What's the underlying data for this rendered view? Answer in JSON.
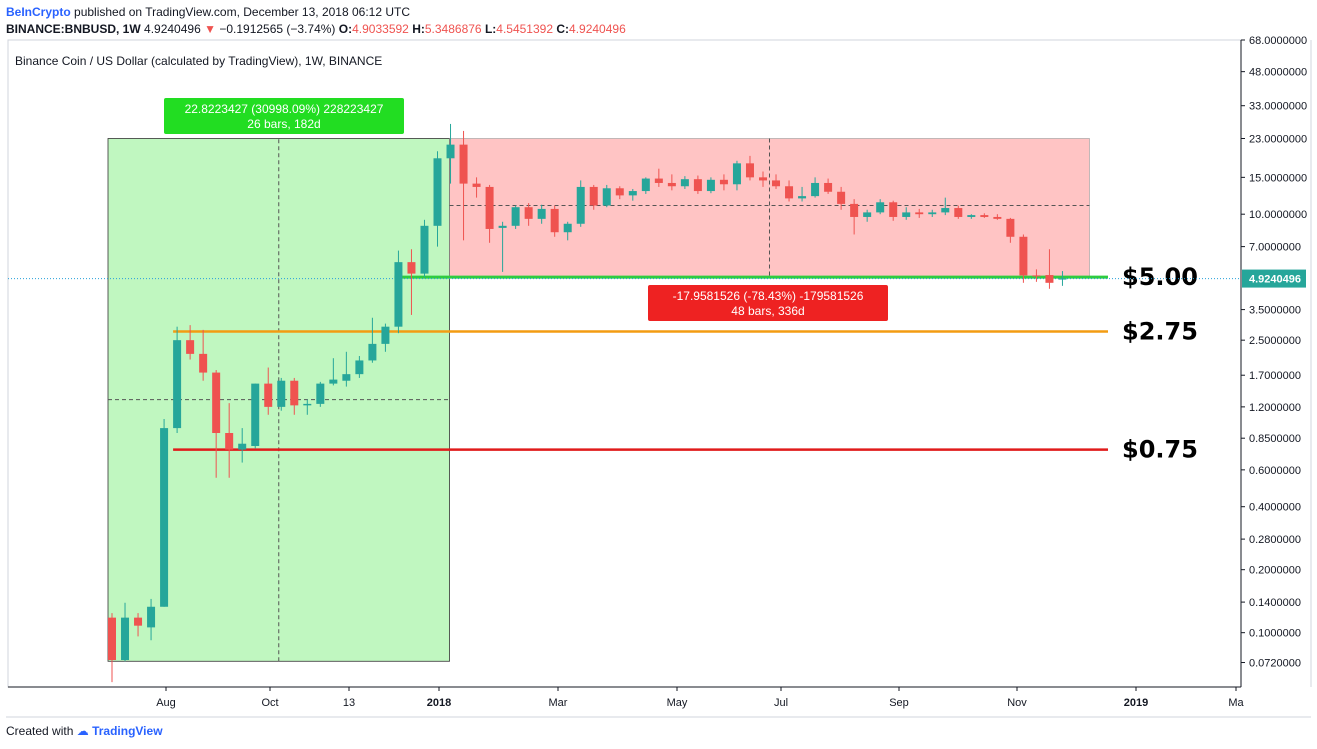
{
  "header": {
    "brand": "BeInCrypto",
    "published": "published on TradingView.com, December 13, 2018 06:12 UTC",
    "symbol": "BINANCE:BNBUSD, 1W",
    "last": "4.9240496",
    "change": "−0.1912565 (−3.74%)",
    "o_label": "O:",
    "o_value": "4.9033592",
    "h_label": "H:",
    "h_value": "5.3486876",
    "l_label": "L:",
    "l_value": "4.5451392",
    "c_label": "C:",
    "c_value": "4.9240496"
  },
  "footer": {
    "created": "Created with",
    "brand": "TradingView"
  },
  "chart_data": {
    "type": "candlestick",
    "title": "Binance Coin / US Dollar (calculated by TradingView), 1W, BINANCE",
    "y_scale": "log",
    "ylim": [
      0.055,
      68
    ],
    "y_ticks": [
      "68.0000000",
      "48.0000000",
      "33.0000000",
      "23.0000000",
      "15.0000000",
      "10.0000000",
      "7.0000000",
      "4.9240496",
      "3.5000000",
      "2.5000000",
      "1.7000000",
      "1.2000000",
      "0.8500000",
      "0.6000000",
      "0.4000000",
      "0.2800000",
      "0.2000000",
      "0.1400000",
      "0.1000000",
      "0.0720000"
    ],
    "x_ticks": [
      "Aug",
      "Oct",
      "13",
      "2018",
      "Mar",
      "May",
      "Jul",
      "Sep",
      "Nov",
      "2019",
      "Ma"
    ],
    "last_price": 4.9240496,
    "candles": [
      {
        "o": 0.118,
        "h": 0.124,
        "l": 0.058,
        "c": 0.074
      },
      {
        "o": 0.074,
        "h": 0.139,
        "l": 0.073,
        "c": 0.118
      },
      {
        "o": 0.118,
        "h": 0.124,
        "l": 0.096,
        "c": 0.108
      },
      {
        "o": 0.106,
        "h": 0.145,
        "l": 0.092,
        "c": 0.133
      },
      {
        "o": 0.133,
        "h": 1.05,
        "l": 0.133,
        "c": 0.95
      },
      {
        "o": 0.95,
        "h": 2.9,
        "l": 0.9,
        "c": 2.5
      },
      {
        "o": 2.5,
        "h": 2.95,
        "l": 2.02,
        "c": 2.15
      },
      {
        "o": 2.15,
        "h": 2.8,
        "l": 1.6,
        "c": 1.75
      },
      {
        "o": 1.75,
        "h": 1.8,
        "l": 0.55,
        "c": 0.9
      },
      {
        "o": 0.9,
        "h": 1.25,
        "l": 0.55,
        "c": 0.75
      },
      {
        "o": 0.75,
        "h": 0.95,
        "l": 0.65,
        "c": 0.8
      },
      {
        "o": 0.78,
        "h": 1.55,
        "l": 0.76,
        "c": 1.55
      },
      {
        "o": 1.55,
        "h": 1.85,
        "l": 1.1,
        "c": 1.2
      },
      {
        "o": 1.2,
        "h": 1.65,
        "l": 1.15,
        "c": 1.6
      },
      {
        "o": 1.6,
        "h": 1.65,
        "l": 1.1,
        "c": 1.22
      },
      {
        "o": 1.22,
        "h": 1.3,
        "l": 1.1,
        "c": 1.24
      },
      {
        "o": 1.24,
        "h": 1.58,
        "l": 1.2,
        "c": 1.55
      },
      {
        "o": 1.55,
        "h": 2.05,
        "l": 1.52,
        "c": 1.62
      },
      {
        "o": 1.6,
        "h": 2.2,
        "l": 1.5,
        "c": 1.72
      },
      {
        "o": 1.72,
        "h": 2.1,
        "l": 1.65,
        "c": 2.0
      },
      {
        "o": 2.0,
        "h": 3.2,
        "l": 1.95,
        "c": 2.4
      },
      {
        "o": 2.4,
        "h": 3.0,
        "l": 2.2,
        "c": 2.9
      },
      {
        "o": 2.9,
        "h": 6.7,
        "l": 2.7,
        "c": 5.9
      },
      {
        "o": 5.9,
        "h": 6.8,
        "l": 3.3,
        "c": 5.2
      },
      {
        "o": 5.2,
        "h": 9.4,
        "l": 5.0,
        "c": 8.8
      },
      {
        "o": 8.8,
        "h": 20.0,
        "l": 7.0,
        "c": 18.5
      },
      {
        "o": 18.5,
        "h": 27.0,
        "l": 14.0,
        "c": 21.5
      },
      {
        "o": 21.5,
        "h": 25.0,
        "l": 7.5,
        "c": 14.0
      },
      {
        "o": 14.0,
        "h": 15.0,
        "l": 12.0,
        "c": 13.5
      },
      {
        "o": 13.5,
        "h": 13.8,
        "l": 7.3,
        "c": 8.5
      },
      {
        "o": 8.6,
        "h": 9.2,
        "l": 5.3,
        "c": 8.8
      },
      {
        "o": 8.8,
        "h": 11.0,
        "l": 8.5,
        "c": 10.8
      },
      {
        "o": 10.8,
        "h": 11.3,
        "l": 8.8,
        "c": 9.5
      },
      {
        "o": 9.5,
        "h": 11.1,
        "l": 9.0,
        "c": 10.6
      },
      {
        "o": 10.6,
        "h": 11.0,
        "l": 7.8,
        "c": 8.2
      },
      {
        "o": 8.2,
        "h": 9.2,
        "l": 7.5,
        "c": 9.0
      },
      {
        "o": 9.0,
        "h": 14.5,
        "l": 8.7,
        "c": 13.5
      },
      {
        "o": 13.5,
        "h": 13.8,
        "l": 10.5,
        "c": 11.0
      },
      {
        "o": 11.0,
        "h": 13.8,
        "l": 10.8,
        "c": 13.3
      },
      {
        "o": 13.3,
        "h": 13.6,
        "l": 11.8,
        "c": 12.3
      },
      {
        "o": 12.3,
        "h": 13.2,
        "l": 11.6,
        "c": 12.9
      },
      {
        "o": 12.9,
        "h": 15.0,
        "l": 12.5,
        "c": 14.8
      },
      {
        "o": 14.8,
        "h": 16.5,
        "l": 13.5,
        "c": 14.1
      },
      {
        "o": 14.1,
        "h": 15.5,
        "l": 13.0,
        "c": 13.6
      },
      {
        "o": 13.6,
        "h": 15.2,
        "l": 13.2,
        "c": 14.7
      },
      {
        "o": 14.7,
        "h": 15.3,
        "l": 12.5,
        "c": 12.9
      },
      {
        "o": 12.9,
        "h": 15.0,
        "l": 12.6,
        "c": 14.6
      },
      {
        "o": 14.6,
        "h": 15.5,
        "l": 13.0,
        "c": 13.9
      },
      {
        "o": 13.9,
        "h": 18.0,
        "l": 13.0,
        "c": 17.5
      },
      {
        "o": 17.5,
        "h": 19.0,
        "l": 14.5,
        "c": 15.0
      },
      {
        "o": 15.0,
        "h": 16.0,
        "l": 13.5,
        "c": 14.5
      },
      {
        "o": 14.5,
        "h": 15.5,
        "l": 13.2,
        "c": 13.6
      },
      {
        "o": 13.6,
        "h": 14.5,
        "l": 11.5,
        "c": 11.9
      },
      {
        "o": 11.9,
        "h": 13.5,
        "l": 11.5,
        "c": 12.2
      },
      {
        "o": 12.2,
        "h": 15.0,
        "l": 12.0,
        "c": 14.1
      },
      {
        "o": 14.1,
        "h": 14.8,
        "l": 12.5,
        "c": 12.8
      },
      {
        "o": 12.8,
        "h": 13.5,
        "l": 10.5,
        "c": 11.2
      },
      {
        "o": 11.2,
        "h": 11.8,
        "l": 8.0,
        "c": 9.7
      },
      {
        "o": 9.7,
        "h": 10.5,
        "l": 9.2,
        "c": 10.2
      },
      {
        "o": 10.2,
        "h": 11.8,
        "l": 10.0,
        "c": 11.4
      },
      {
        "o": 11.4,
        "h": 11.6,
        "l": 9.3,
        "c": 9.7
      },
      {
        "o": 9.7,
        "h": 10.8,
        "l": 9.4,
        "c": 10.2
      },
      {
        "o": 10.2,
        "h": 10.6,
        "l": 9.6,
        "c": 10.0
      },
      {
        "o": 10.0,
        "h": 10.5,
        "l": 9.7,
        "c": 10.2
      },
      {
        "o": 10.2,
        "h": 12.0,
        "l": 9.9,
        "c": 10.7
      },
      {
        "o": 10.7,
        "h": 11.0,
        "l": 9.5,
        "c": 9.7
      },
      {
        "o": 9.7,
        "h": 10.0,
        "l": 9.5,
        "c": 9.9
      },
      {
        "o": 9.9,
        "h": 10.1,
        "l": 9.6,
        "c": 9.7
      },
      {
        "o": 9.7,
        "h": 10.0,
        "l": 9.4,
        "c": 9.5
      },
      {
        "o": 9.5,
        "h": 9.6,
        "l": 7.3,
        "c": 7.8
      },
      {
        "o": 7.8,
        "h": 8.0,
        "l": 4.7,
        "c": 5.1
      },
      {
        "o": 5.1,
        "h": 5.45,
        "l": 4.75,
        "c": 5.05
      },
      {
        "o": 5.12,
        "h": 6.8,
        "l": 4.4,
        "c": 4.7
      },
      {
        "o": 4.9033592,
        "h": 5.3486876,
        "l": 4.5451392,
        "c": 4.9240496
      }
    ],
    "measure_up": {
      "line1": "22.8223427 (30998.09%) 228223427",
      "line2": "26 bars, 182d",
      "from_index": 0,
      "to_index": 26,
      "low": 0.073,
      "high": 23.0
    },
    "measure_down": {
      "line1": "-17.9581526 (-78.43%) -179581526",
      "line2": "48 bars, 336d",
      "from_index": 26,
      "to_index": 74,
      "low": 5.0,
      "high": 23.0
    },
    "levels": [
      {
        "label": "$5.00",
        "value": 5.0,
        "color": "#2ecc40",
        "from_index": 22
      },
      {
        "label": "$2.75",
        "value": 2.75,
        "color": "#f39c12",
        "from_index": 5
      },
      {
        "label": "$0.75",
        "value": 0.75,
        "color": "#e01b1b",
        "from_index": 5
      }
    ]
  }
}
